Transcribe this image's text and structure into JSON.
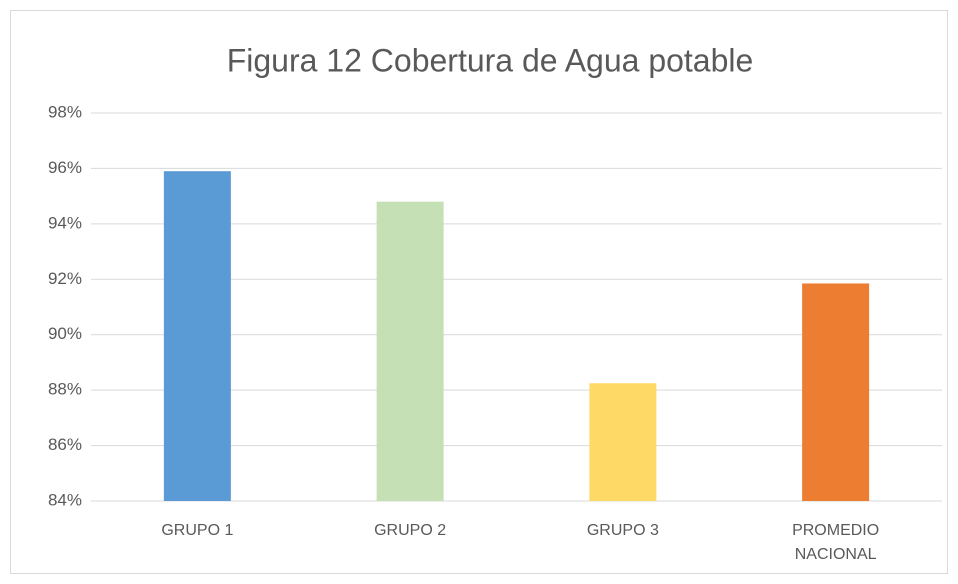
{
  "chart_data": {
    "type": "bar",
    "title": "Figura 12 Cobertura de Agua potable",
    "categories": [
      "GRUPO 1",
      "GRUPO 2",
      "GRUPO 3",
      "PROMEDIO NACIONAL"
    ],
    "values": [
      95.9,
      94.8,
      88.25,
      91.85
    ],
    "colors": [
      "#5b9bd5",
      "#c5e0b4",
      "#ffd966",
      "#ed7d31"
    ],
    "ylim": [
      84,
      98
    ],
    "yticks": [
      {
        "value": 84,
        "label": "84%"
      },
      {
        "value": 86,
        "label": "86%"
      },
      {
        "value": 88,
        "label": "88%"
      },
      {
        "value": 90,
        "label": "90%"
      },
      {
        "value": 92,
        "label": "92%"
      },
      {
        "value": 94,
        "label": "94%"
      },
      {
        "value": 96,
        "label": "96%"
      },
      {
        "value": 98,
        "label": "98%"
      }
    ],
    "grid": true
  }
}
